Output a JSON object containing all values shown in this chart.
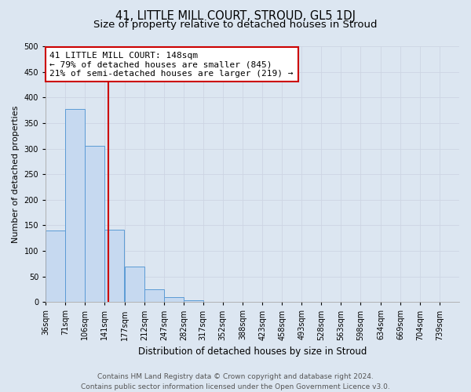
{
  "title": "41, LITTLE MILL COURT, STROUD, GL5 1DJ",
  "subtitle": "Size of property relative to detached houses in Stroud",
  "xlabel": "Distribution of detached houses by size in Stroud",
  "ylabel": "Number of detached properties",
  "bin_labels": [
    "36sqm",
    "71sqm",
    "106sqm",
    "141sqm",
    "177sqm",
    "212sqm",
    "247sqm",
    "282sqm",
    "317sqm",
    "352sqm",
    "388sqm",
    "423sqm",
    "458sqm",
    "493sqm",
    "528sqm",
    "563sqm",
    "598sqm",
    "634sqm",
    "669sqm",
    "704sqm",
    "739sqm"
  ],
  "bin_edges": [
    36,
    71,
    106,
    141,
    177,
    212,
    247,
    282,
    317,
    352,
    388,
    423,
    458,
    493,
    528,
    563,
    598,
    634,
    669,
    704,
    739
  ],
  "bar_heights": [
    140,
    378,
    305,
    141,
    70,
    25,
    9,
    3,
    0,
    0,
    0,
    0,
    0,
    0,
    0,
    0,
    0,
    0,
    0,
    0
  ],
  "bar_color": "#c6d9f0",
  "bar_edge_color": "#5b9bd5",
  "property_value": 148,
  "vline_color": "#cc0000",
  "annotation_line1": "41 LITTLE MILL COURT: 148sqm",
  "annotation_line2": "← 79% of detached houses are smaller (845)",
  "annotation_line3": "21% of semi-detached houses are larger (219) →",
  "annotation_box_color": "#ffffff",
  "annotation_box_edge_color": "#cc0000",
  "ylim": [
    0,
    500
  ],
  "yticks": [
    0,
    50,
    100,
    150,
    200,
    250,
    300,
    350,
    400,
    450,
    500
  ],
  "grid_color": "#cdd5e3",
  "background_color": "#dce6f1",
  "footer_text": "Contains HM Land Registry data © Crown copyright and database right 2024.\nContains public sector information licensed under the Open Government Licence v3.0.",
  "title_fontsize": 10.5,
  "subtitle_fontsize": 9.5,
  "xlabel_fontsize": 8.5,
  "ylabel_fontsize": 8,
  "tick_fontsize": 7,
  "annotation_fontsize": 8,
  "footer_fontsize": 6.5
}
